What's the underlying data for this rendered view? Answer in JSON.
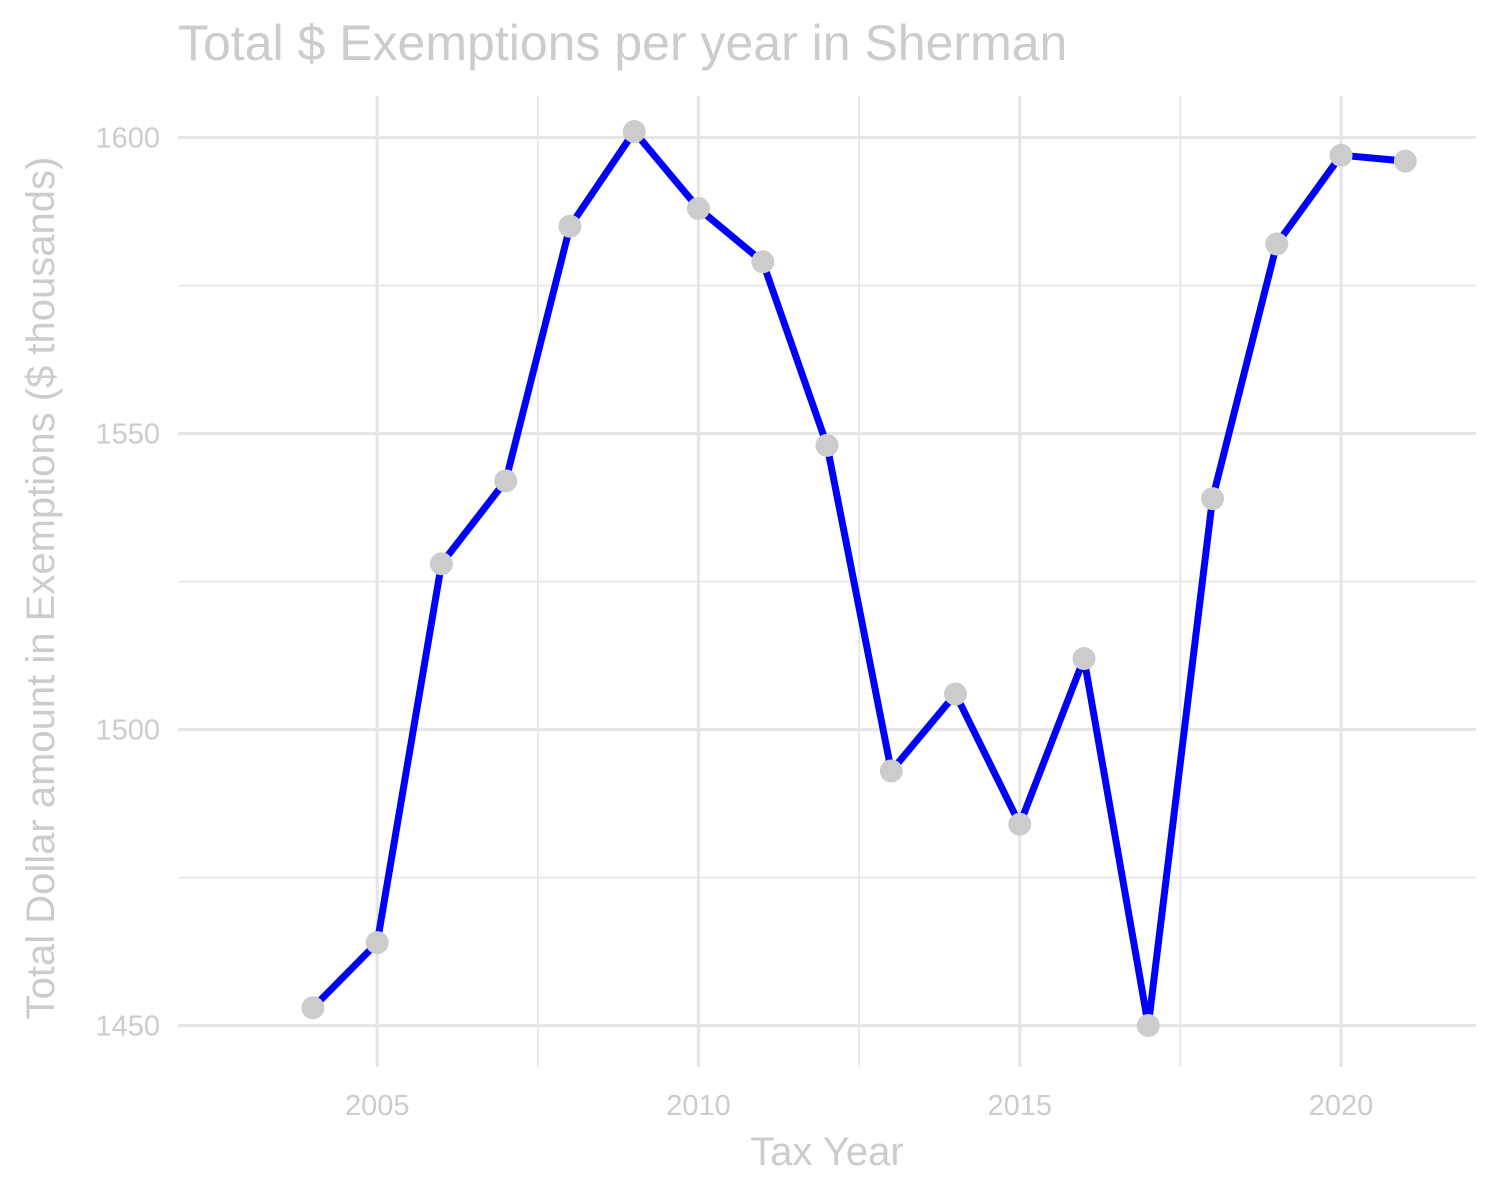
{
  "chart_data": {
    "type": "line",
    "title": "Total $ Exemptions per year in Sherman",
    "xlabel": "Tax Year",
    "ylabel": "Total Dollar amount in Exemptions ($ thousands)",
    "x": [
      2004,
      2005,
      2006,
      2007,
      2008,
      2009,
      2010,
      2011,
      2012,
      2013,
      2014,
      2015,
      2016,
      2017,
      2018,
      2019,
      2020,
      2021
    ],
    "series": [
      {
        "values": [
          1453,
          1464,
          1528,
          1542,
          1585,
          1601,
          1588,
          1579,
          1548,
          1493,
          1506,
          1484,
          1512,
          1450,
          1539,
          1582,
          1597,
          1596
        ]
      }
    ],
    "xlim": [
      2001.9,
      2022.1
    ],
    "ylim": [
      1443,
      1607
    ],
    "x_ticks": [
      "2005",
      "2010",
      "2015",
      "2020"
    ],
    "y_ticks": [
      "1450",
      "1500",
      "1550",
      "1600"
    ],
    "grid": true,
    "colors": {
      "line": "#0000ff",
      "points": "#cccccc",
      "grid": "#e6e6e6",
      "text": "#cccccc"
    }
  }
}
